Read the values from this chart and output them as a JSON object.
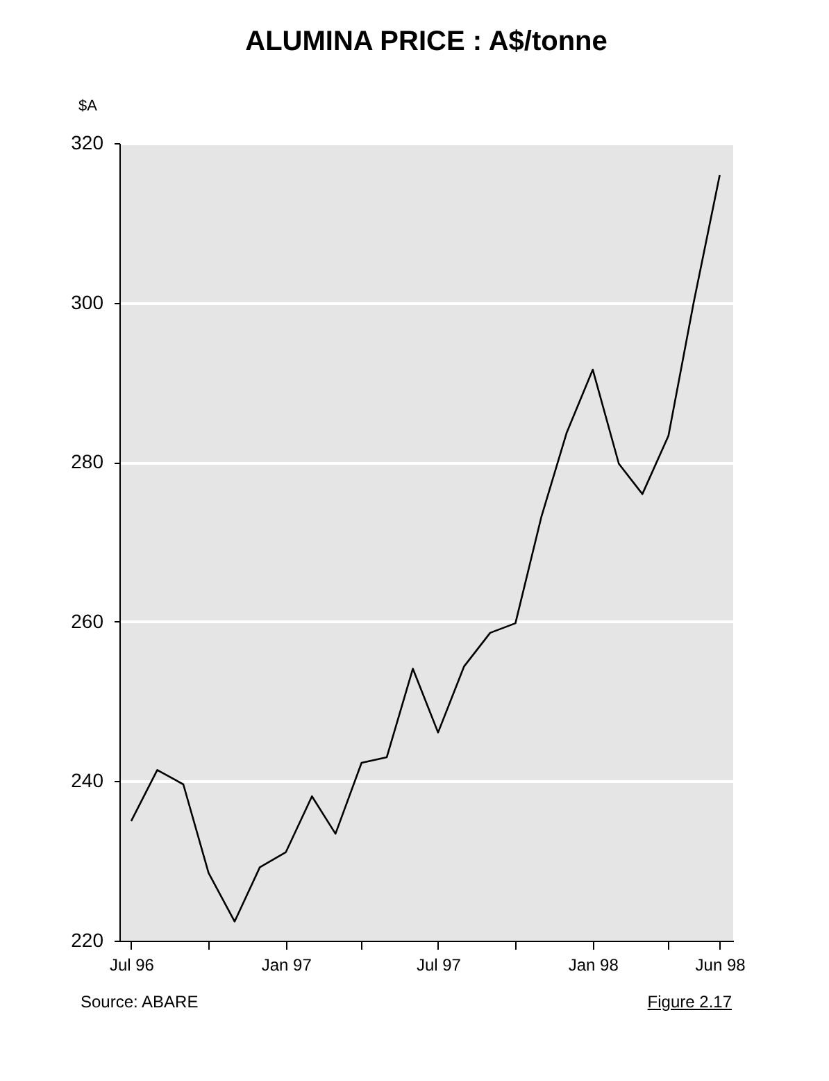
{
  "chart_data": {
    "type": "line",
    "title": "ALUMINA PRICE : A$/tonne",
    "ylabel": "$A",
    "x": [
      "1996-07-15",
      "1996-08-15",
      "1996-09-15",
      "1996-10-15",
      "1996-11-15",
      "1996-12-15",
      "1997-01-15",
      "1997-02-15",
      "1997-03-15",
      "1997-04-15",
      "1997-05-15",
      "1997-06-15",
      "1997-07-15",
      "1997-08-15",
      "1997-09-15",
      "1997-10-15",
      "1997-11-15",
      "1997-12-15",
      "1998-01-15",
      "1998-02-15",
      "1998-03-15",
      "1998-04-15",
      "1998-05-15",
      "1998-06-15"
    ],
    "series": [
      {
        "color": "#000000",
        "values": [
          235,
          241.4,
          239.6,
          228.5,
          222.4,
          229.2,
          231.1,
          238.1,
          233.4,
          242.3,
          243,
          254.1,
          246.1,
          254.4,
          258.6,
          259.8,
          273.2,
          283.7,
          291.6,
          279.8,
          276,
          283.3,
          300,
          316
        ]
      }
    ],
    "xlim": [
      "1996-07-01",
      "1998-07-01"
    ],
    "xticks": [
      {
        "value": "1996-07-15",
        "label": "Jul 96"
      },
      {
        "value": "1996-10-15",
        "label": null
      },
      {
        "value": "1997-01-15",
        "label": "Jan 97"
      },
      {
        "value": "1997-04-15",
        "label": null
      },
      {
        "value": "1997-07-15",
        "label": "Jul 97"
      },
      {
        "value": "1997-10-15",
        "label": null
      },
      {
        "value": "1998-01-15",
        "label": "Jan 98"
      },
      {
        "value": "1998-04-15",
        "label": null
      },
      {
        "value": "1998-06-15",
        "label": "Jun 98"
      }
    ],
    "ylim": [
      220,
      320
    ],
    "yticks": [
      220,
      240,
      260,
      280,
      300,
      320
    ],
    "grid": "y",
    "marker": "none",
    "line_style": "solid",
    "legend": false,
    "annotations": [
      "Source: ABARE",
      "Figure 2.17"
    ]
  }
}
